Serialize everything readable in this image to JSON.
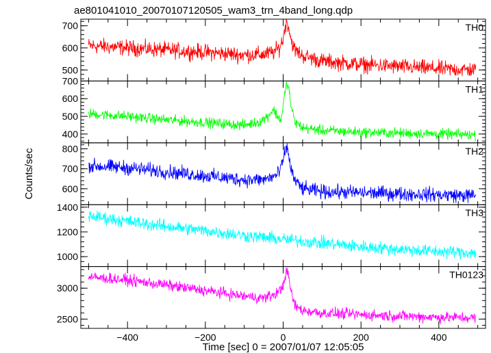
{
  "chart_data": {
    "type": "line",
    "title": "ae801041010_20070107120505_wam3_trn_4band_long.qdp",
    "xlabel": "Time [sec] 0 = 2007/01/07 12:05:05",
    "ylabel": "Counts/sec",
    "xlim": [
      -520,
      520
    ],
    "xticks": [
      -400,
      -200,
      0,
      200,
      400
    ],
    "xtick_labels": [
      "−400",
      "−200",
      "0",
      "200",
      "400"
    ],
    "panels": [
      {
        "name": "TH0",
        "color": "#ff0000",
        "ylim": [
          450,
          730
        ],
        "yticks": [
          500,
          600,
          700
        ],
        "ytick_labels": [
          "500",
          "600",
          "700"
        ],
        "x": [
          -500,
          -400,
          -300,
          -200,
          -100,
          -50,
          -25,
          -10,
          0,
          5,
          10,
          15,
          20,
          30,
          50,
          100,
          200,
          300,
          400,
          495
        ],
        "y": [
          610,
          600,
          590,
          580,
          568,
          570,
          580,
          600,
          640,
          700,
          720,
          690,
          640,
          590,
          565,
          540,
          525,
          515,
          505,
          500
        ],
        "noise": 22
      },
      {
        "name": "TH1",
        "color": "#00ff00",
        "ylim": [
          350,
          700
        ],
        "yticks": [
          400,
          500,
          600,
          700
        ],
        "ytick_labels": [
          "400",
          "500",
          "600",
          "700"
        ],
        "x": [
          -500,
          -400,
          -300,
          -200,
          -100,
          -60,
          -40,
          -25,
          -15,
          -5,
          0,
          5,
          10,
          15,
          20,
          30,
          50,
          100,
          200,
          300,
          400,
          495
        ],
        "y": [
          515,
          500,
          480,
          465,
          450,
          470,
          500,
          540,
          500,
          480,
          560,
          640,
          690,
          650,
          560,
          470,
          435,
          420,
          410,
          405,
          400,
          395
        ],
        "noise": 18
      },
      {
        "name": "TH2",
        "color": "#0000ff",
        "ylim": [
          520,
          830
        ],
        "yticks": [
          600,
          700,
          800
        ],
        "ytick_labels": [
          "600",
          "700",
          "800"
        ],
        "x": [
          -500,
          -400,
          -300,
          -200,
          -100,
          -50,
          -20,
          -10,
          0,
          5,
          10,
          15,
          20,
          30,
          50,
          100,
          200,
          300,
          400,
          495
        ],
        "y": [
          715,
          705,
          685,
          665,
          645,
          645,
          665,
          680,
          740,
          790,
          810,
          760,
          700,
          640,
          600,
          585,
          580,
          575,
          570,
          565
        ],
        "noise": 22
      },
      {
        "name": "TH3",
        "color": "#00ffff",
        "ylim": [
          920,
          1420
        ],
        "yticks": [
          1000,
          1200,
          1400
        ],
        "ytick_labels": [
          "1000",
          "1200",
          "1400"
        ],
        "x": [
          -500,
          -400,
          -300,
          -200,
          -100,
          0,
          100,
          200,
          300,
          400,
          495
        ],
        "y": [
          1330,
          1285,
          1245,
          1210,
          1170,
          1140,
          1110,
          1080,
          1060,
          1040,
          1030
        ],
        "noise": 32
      },
      {
        "name": "TH0123",
        "color": "#ff00ff",
        "ylim": [
          2350,
          3350
        ],
        "yticks": [
          2500,
          3000
        ],
        "ytick_labels": [
          "2500",
          "3000"
        ],
        "x": [
          -500,
          -400,
          -300,
          -200,
          -100,
          -50,
          -25,
          -10,
          0,
          5,
          10,
          15,
          20,
          30,
          50,
          100,
          200,
          300,
          400,
          495
        ],
        "y": [
          3180,
          3130,
          3050,
          2960,
          2870,
          2840,
          2890,
          2950,
          3050,
          3200,
          3270,
          3150,
          2950,
          2720,
          2640,
          2600,
          2570,
          2550,
          2530,
          2520
        ],
        "noise": 55
      }
    ]
  }
}
